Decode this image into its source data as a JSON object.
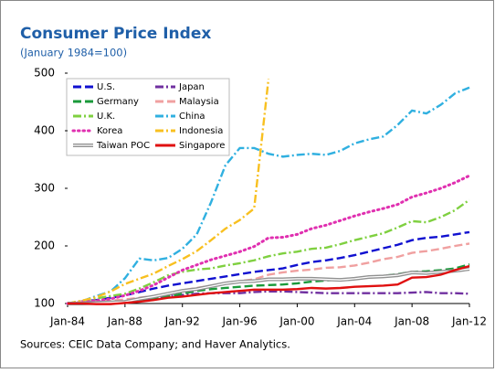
{
  "chart_data": {
    "type": "line",
    "title": "Consumer Price Index",
    "subtitle": "(January 1984=100)",
    "source": "Sources: CEIC Data Company; and Haver Analytics.",
    "categories": [
      "Jan-84",
      null,
      null,
      null,
      "Jan-88",
      null,
      null,
      null,
      "Jan-92",
      null,
      null,
      null,
      "Jan-96",
      null,
      null,
      null,
      "Jan-00",
      null,
      null,
      null,
      "Jan-04",
      null,
      null,
      null,
      "Jan-08",
      null,
      null,
      null,
      "Jan-12"
    ],
    "ylim": [
      100,
      500
    ],
    "yticks": [
      100,
      200,
      300,
      400,
      500
    ],
    "series": [
      {
        "name": "U.S.",
        "color": "#1010d0",
        "dash": "long",
        "values": [
          100,
          104,
          106,
          110,
          114,
          120,
          126,
          131,
          135,
          139,
          143,
          147,
          151,
          155,
          158,
          161,
          167,
          172,
          175,
          179,
          184,
          190,
          196,
          202,
          210,
          214,
          216,
          220,
          224
        ]
      },
      {
        "name": "Japan",
        "color": "#7030a0",
        "dash": "dashdot",
        "values": [
          100,
          102,
          103,
          103,
          104,
          106,
          109,
          113,
          115,
          117,
          118,
          118,
          118,
          120,
          121,
          121,
          120,
          119,
          118,
          118,
          118,
          118,
          118,
          118,
          119,
          120,
          118,
          118,
          117
        ]
      },
      {
        "name": "Germany",
        "color": "#1a9a3a",
        "dash": "long",
        "values": [
          100,
          102,
          101,
          101,
          102,
          105,
          108,
          112,
          117,
          122,
          125,
          127,
          129,
          131,
          132,
          133,
          135,
          138,
          140,
          142,
          143,
          146,
          148,
          151,
          155,
          156,
          158,
          161,
          168
        ]
      },
      {
        "name": "Malaysia",
        "color": "#f0a0a0",
        "dash": "long",
        "values": [
          100,
          104,
          104,
          105,
          107,
          110,
          113,
          118,
          123,
          127,
          131,
          135,
          139,
          142,
          150,
          154,
          157,
          159,
          162,
          163,
          166,
          171,
          177,
          181,
          188,
          191,
          195,
          200,
          204
        ]
      },
      {
        "name": "U.K.",
        "color": "#7fd040",
        "dash": "dashdot",
        "values": [
          100,
          105,
          109,
          113,
          117,
          126,
          137,
          149,
          155,
          159,
          161,
          166,
          170,
          175,
          182,
          187,
          190,
          195,
          197,
          203,
          210,
          216,
          222,
          232,
          243,
          241,
          250,
          262,
          280
        ]
      },
      {
        "name": "China",
        "color": "#30b0e0",
        "dash": "dashdot",
        "values": [
          100,
          104,
          113,
          121,
          144,
          178,
          175,
          179,
          195,
          220,
          276,
          340,
          370,
          370,
          360,
          355,
          358,
          360,
          358,
          365,
          378,
          385,
          390,
          410,
          435,
          430,
          445,
          465,
          475
        ]
      },
      {
        "name": "Korea",
        "color": "#e030b0",
        "dash": "dot",
        "values": [
          100,
          102,
          105,
          108,
          114,
          122,
          132,
          145,
          158,
          167,
          176,
          183,
          190,
          199,
          214,
          215,
          220,
          230,
          236,
          244,
          252,
          259,
          265,
          272,
          285,
          292,
          300,
          310,
          322
        ]
      },
      {
        "name": "Indonesia",
        "color": "#f8c020",
        "dash": "dashdot",
        "values": [
          100,
          105,
          111,
          121,
          134,
          143,
          152,
          165,
          177,
          191,
          210,
          230,
          245,
          265,
          490,
          null,
          null,
          null,
          null,
          null,
          null,
          null,
          null,
          null,
          null,
          null,
          null,
          null,
          null
        ]
      },
      {
        "name": "Taiwan POC",
        "color": "#909090",
        "dash": "double",
        "values": [
          100,
          100,
          101,
          102,
          103,
          108,
          112,
          117,
          122,
          125,
          130,
          135,
          138,
          139,
          142,
          142,
          143,
          143,
          142,
          141,
          143,
          146,
          147,
          149,
          154,
          153,
          155,
          157,
          160
        ]
      },
      {
        "name": "Singapore",
        "color": "#e01010",
        "dash": "solid",
        "values": [
          100,
          100,
          99,
          99,
          101,
          103,
          106,
          110,
          112,
          115,
          118,
          120,
          122,
          124,
          124,
          124,
          125,
          127,
          126,
          127,
          129,
          130,
          131,
          133,
          145,
          146,
          150,
          158,
          165
        ]
      }
    ]
  }
}
